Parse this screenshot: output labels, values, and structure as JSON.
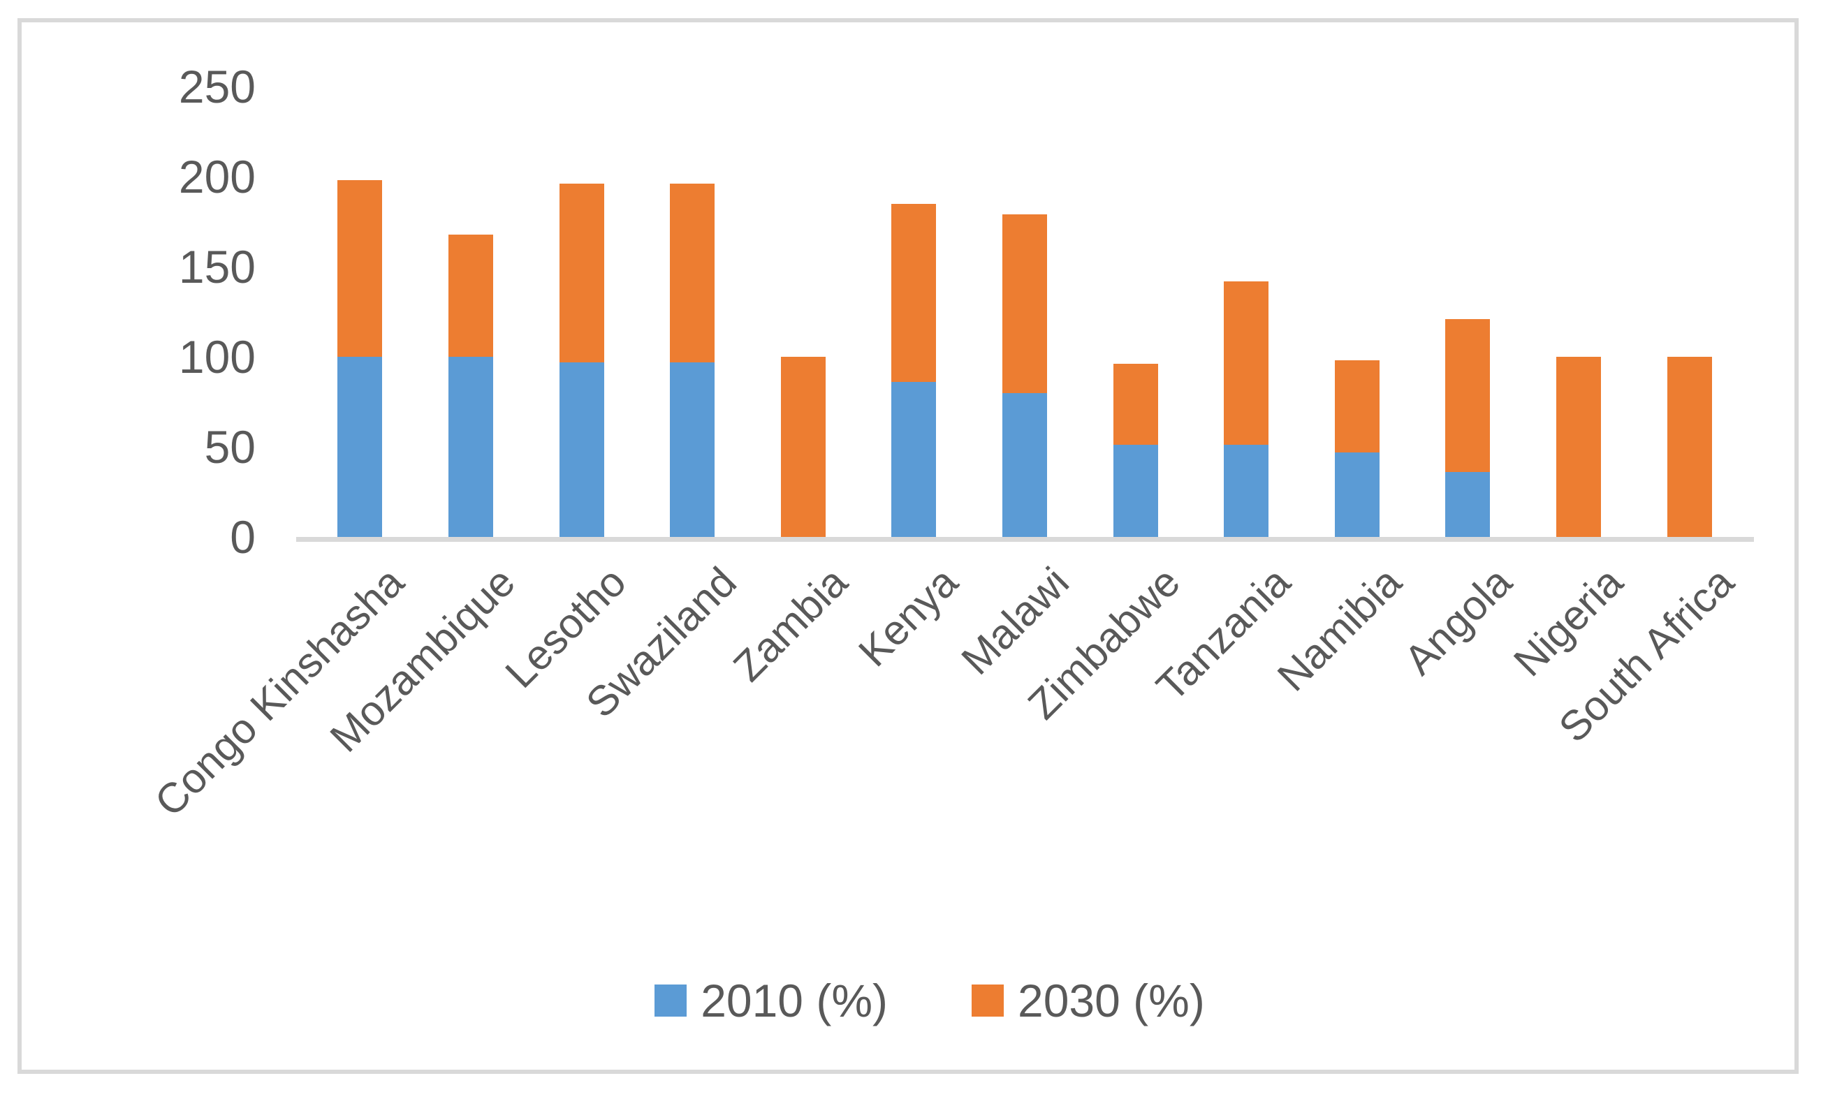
{
  "chart_data": {
    "type": "bar",
    "stacked": true,
    "title": "",
    "xlabel": "",
    "ylabel": "",
    "categories": [
      "Congo Kinshasha",
      "Mozambique",
      "Lesotho",
      "Swaziland",
      "Zambia",
      "Kenya",
      "Malawi",
      "Zimbabwe",
      "Tanzania",
      "Namibia",
      "Angola",
      "Nigeria",
      "South Africa"
    ],
    "series": [
      {
        "name": "2010 (%)",
        "color": "#5B9BD5",
        "values": [
          100,
          100,
          97,
          97,
          0,
          86,
          80,
          51,
          51,
          47,
          36,
          0,
          0
        ]
      },
      {
        "name": "2030 (%)",
        "color": "#ED7D31",
        "values": [
          98,
          68,
          99,
          99,
          100,
          99,
          99,
          45,
          91,
          51,
          85,
          100,
          100
        ]
      }
    ],
    "ylim": [
      0,
      250
    ],
    "yticks": [
      0,
      50,
      100,
      150,
      200,
      250
    ],
    "grid": false,
    "legend_position": "bottom",
    "x_tick_rotation_deg": 45
  },
  "colors": {
    "series_2010": "#5B9BD5",
    "series_2030": "#ED7D31",
    "axis_line": "#D9D9D9",
    "frame_border": "#D9D9D9",
    "tick_text": "#595959"
  }
}
